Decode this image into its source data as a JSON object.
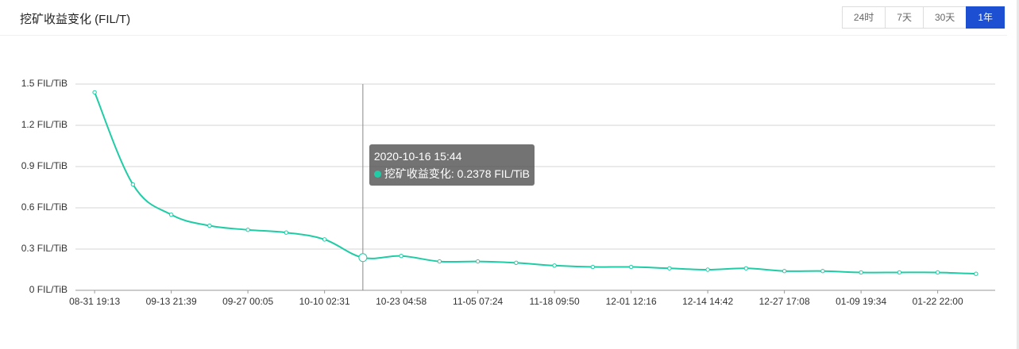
{
  "header": {
    "title": "挖矿收益变化 (FIL/T)",
    "buttons": [
      "24时",
      "7天",
      "30天",
      "1年"
    ],
    "active": "1年"
  },
  "chart_data": {
    "type": "line",
    "categories": [
      "08-31 19:13",
      null,
      "09-13 21:39",
      null,
      "09-27 00:05",
      null,
      "10-10 02:31",
      null,
      "10-23 04:58",
      null,
      "11-05 07:24",
      null,
      "11-18 09:50",
      null,
      "12-01 12:16",
      null,
      "12-14 14:42",
      null,
      "12-27 17:08",
      null,
      "01-09 19:34",
      null,
      "01-22 22:00",
      null
    ],
    "series": [
      {
        "name": "挖矿收益变化",
        "color": "#1fcca5",
        "values": [
          1.44,
          0.77,
          0.55,
          0.47,
          0.44,
          0.42,
          0.37,
          0.2378,
          0.25,
          0.21,
          0.21,
          0.2,
          0.18,
          0.17,
          0.17,
          0.16,
          0.15,
          0.16,
          0.14,
          0.14,
          0.13,
          0.13,
          0.13,
          0.12
        ],
        "value_labels": [
          null,
          null,
          null,
          null,
          null,
          null,
          null,
          "挖矿收益变化: 0.2378 FIL/TiB",
          null,
          null,
          null,
          null,
          null,
          null,
          null,
          null,
          null,
          null,
          null,
          null,
          null,
          null,
          null,
          null
        ]
      }
    ],
    "tooltip_title": "2020-10-16 15:44",
    "ylim": [
      0,
      1.5
    ],
    "yticks": [
      {
        "value": 0,
        "label": "0 FIL/TiB"
      },
      {
        "value": 0.3,
        "label": "0.3 FIL/TiB"
      },
      {
        "value": 0.6,
        "label": "0.6 FIL/TiB"
      },
      {
        "value": 0.9,
        "label": "0.9 FIL/TiB"
      },
      {
        "value": 1.2,
        "label": "1.2 FIL/TiB"
      },
      {
        "value": 1.5,
        "label": "1.5 FIL/TiB"
      }
    ],
    "grid": true
  }
}
